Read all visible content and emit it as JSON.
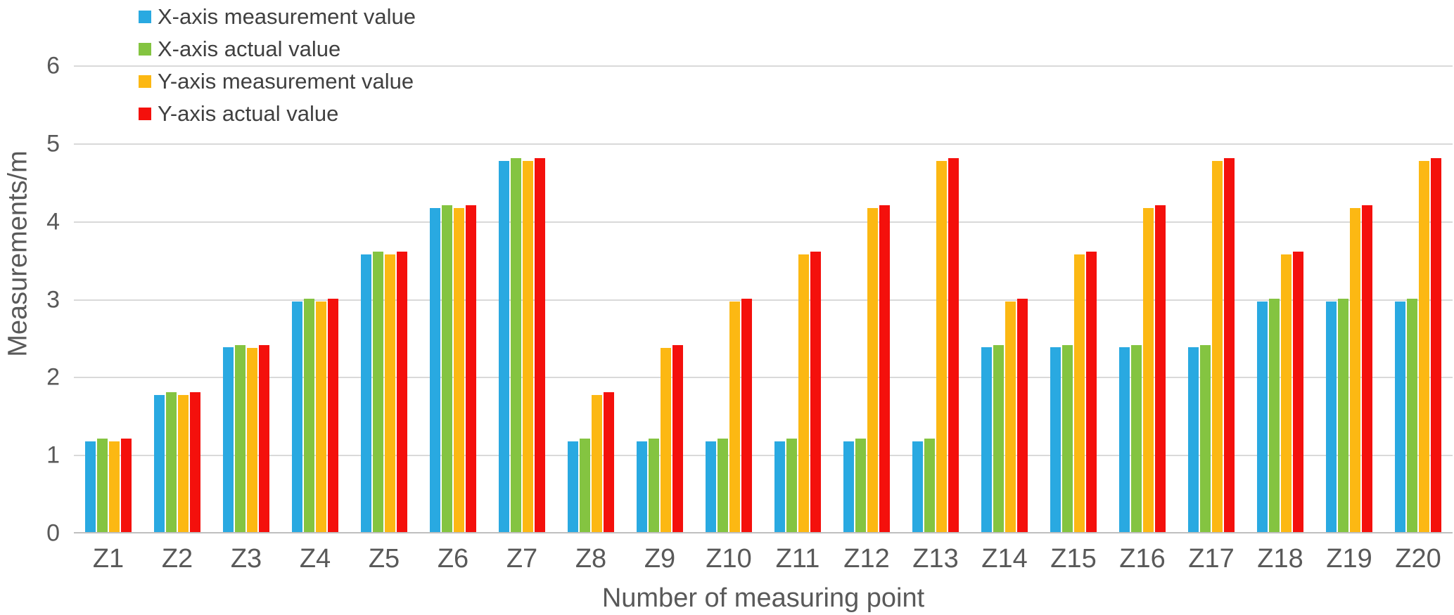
{
  "chart_data": {
    "type": "bar",
    "title": "",
    "xlabel": "Number of measuring point",
    "ylabel": "Measurements/m",
    "ylim": [
      0,
      6
    ],
    "yticks": [
      0,
      1,
      2,
      3,
      4,
      5,
      6
    ],
    "grid": true,
    "legend_position": "top-left",
    "categories": [
      "Z1",
      "Z2",
      "Z3",
      "Z4",
      "Z5",
      "Z6",
      "Z7",
      "Z8",
      "Z9",
      "Z10",
      "Z11",
      "Z12",
      "Z13",
      "Z14",
      "Z15",
      "Z16",
      "Z17",
      "Z18",
      "Z19",
      "Z20"
    ],
    "series": [
      {
        "name": "X-axis measurement value",
        "color": "#29a9e1",
        "values": [
          1.16,
          1.76,
          2.37,
          2.96,
          3.56,
          4.16,
          4.76,
          1.16,
          1.16,
          1.16,
          1.16,
          1.16,
          1.16,
          2.37,
          2.37,
          2.37,
          2.37,
          2.96,
          2.96,
          2.96
        ]
      },
      {
        "name": "X-axis actual value",
        "color": "#84c441",
        "values": [
          1.2,
          1.8,
          2.4,
          3.0,
          3.6,
          4.2,
          4.8,
          1.2,
          1.2,
          1.2,
          1.2,
          1.2,
          1.2,
          2.4,
          2.4,
          2.4,
          2.4,
          3.0,
          3.0,
          3.0
        ]
      },
      {
        "name": "Y-axis measurement value",
        "color": "#fcb813",
        "values": [
          1.16,
          1.76,
          2.36,
          2.96,
          3.56,
          4.16,
          4.76,
          1.76,
          2.36,
          2.96,
          3.56,
          4.16,
          4.76,
          2.96,
          3.56,
          4.16,
          4.76,
          3.56,
          4.16,
          4.76
        ]
      },
      {
        "name": "Y-axis actual value",
        "color": "#f4100c",
        "values": [
          1.2,
          1.8,
          2.4,
          3.0,
          3.6,
          4.2,
          4.8,
          1.8,
          2.4,
          3.0,
          3.6,
          4.2,
          4.8,
          3.0,
          3.6,
          4.2,
          4.8,
          3.6,
          4.2,
          4.8
        ]
      }
    ],
    "grid_color": "#d9d9d9",
    "axis_line_color": "#bfbfbf",
    "tick_label_color": "#595959",
    "legend_text_color": "#404040"
  }
}
